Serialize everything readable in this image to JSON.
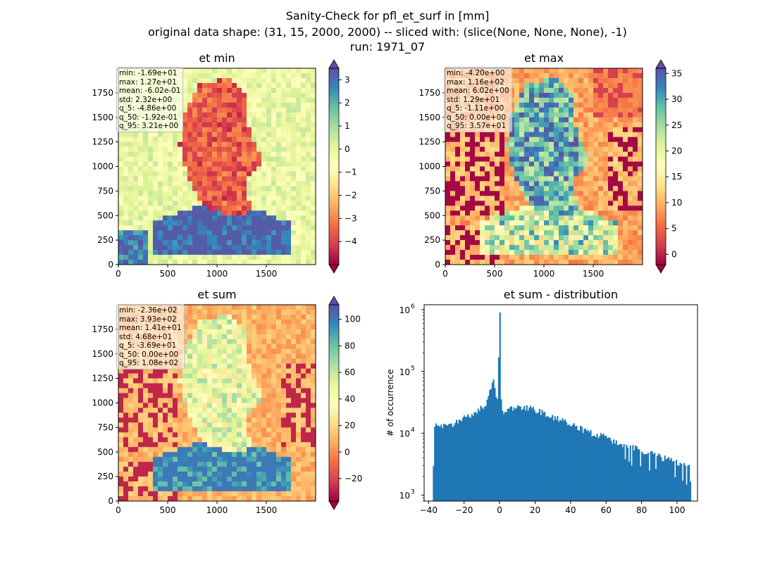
{
  "figure": {
    "title_line1": "Sanity-Check for pfl_et_surf in [mm]",
    "title_line2": "original data shape: (31, 15, 2000, 2000) -- sliced with: (slice(None, None, None), -1)",
    "title_line3": "run: 1971_07"
  },
  "chart_data": [
    {
      "type": "heatmap",
      "title": "et min",
      "xlim": [
        0,
        2000
      ],
      "ylim": [
        0,
        2000
      ],
      "xticks": [
        "0",
        "500",
        "1000",
        "1500"
      ],
      "yticks": [
        "0",
        "250",
        "500",
        "750",
        "1000",
        "1250",
        "1500",
        "1750"
      ],
      "colormap": "Spectral",
      "colorbar": {
        "range": [
          -5,
          3.5
        ],
        "extend": "both",
        "ticks": [
          "3",
          "2",
          "1",
          "0",
          "−1",
          "−2",
          "−3",
          "−4"
        ]
      },
      "stats": [
        "min: -1.69e+01",
        "max: 1.27e+01",
        "mean: -6.02e-01",
        "std: 2.32e+00",
        "q_5: -4.86e+00",
        "q_50: -1.92e-01",
        "q_95: 3.21e+00"
      ]
    },
    {
      "type": "heatmap",
      "title": "et max",
      "xlim": [
        0,
        2000
      ],
      "ylim": [
        0,
        2000
      ],
      "xticks": [
        "0",
        "500",
        "1000",
        "1500"
      ],
      "yticks": [
        "0",
        "250",
        "500",
        "750",
        "1000",
        "1250",
        "1500",
        "1750"
      ],
      "colormap": "Spectral",
      "colorbar": {
        "range": [
          -2,
          36
        ],
        "extend": "both",
        "ticks": [
          "35",
          "30",
          "25",
          "20",
          "15",
          "10",
          "5",
          "0"
        ]
      },
      "stats": [
        "min: -4.20e+00",
        "max: 1.16e+02",
        "mean: 6.02e+00",
        "std: 1.29e+01",
        "q_5: -1.11e+00",
        "q_50: 0.00e+00",
        "q_95: 3.57e+01"
      ]
    },
    {
      "type": "heatmap",
      "title": "et sum",
      "xlim": [
        0,
        2000
      ],
      "ylim": [
        0,
        2000
      ],
      "xticks": [
        "0",
        "500",
        "1000",
        "1500"
      ],
      "yticks": [
        "0",
        "250",
        "500",
        "750",
        "1000",
        "1250",
        "1500",
        "1750"
      ],
      "colormap": "Spectral",
      "colorbar": {
        "range": [
          -37,
          111
        ],
        "extend": "both",
        "ticks": [
          "100",
          "80",
          "60",
          "40",
          "20",
          "0",
          "−20"
        ]
      },
      "stats": [
        "min: -2.36e+02",
        "max: 3.93e+02",
        "mean: 1.41e+01",
        "std: 4.68e+01",
        "q_5: -3.69e+01",
        "q_50: 0.00e+00",
        "q_95: 1.08e+02"
      ]
    },
    {
      "type": "bar",
      "title": "et sum - distribution",
      "ylabel": "# of occurrence",
      "xlabel": "",
      "yscale": "log",
      "xlim": [
        -42.5,
        111.5
      ],
      "ylim": [
        800,
        1200000
      ],
      "xticks": [
        "−40",
        "−20",
        "0",
        "20",
        "40",
        "60",
        "80",
        "100"
      ],
      "yticks": [
        "10",
        "10",
        "10",
        "10"
      ],
      "ytick_exponents": [
        "3",
        "4",
        "5",
        "6"
      ],
      "bin_width": 0.72,
      "bar_color": "#1f77b4",
      "histogram": [
        {
          "x": -37,
          "y": 12000
        },
        {
          "x": -35,
          "y": 13500
        },
        {
          "x": -33,
          "y": 12500
        },
        {
          "x": -30,
          "y": 13000
        },
        {
          "x": -27,
          "y": 13500
        },
        {
          "x": -25,
          "y": 15000
        },
        {
          "x": -22,
          "y": 16500
        },
        {
          "x": -20,
          "y": 17500
        },
        {
          "x": -18,
          "y": 18500
        },
        {
          "x": -15,
          "y": 21000
        },
        {
          "x": -12,
          "y": 24000
        },
        {
          "x": -10,
          "y": 26000
        },
        {
          "x": -8,
          "y": 30000
        },
        {
          "x": -6,
          "y": 40000
        },
        {
          "x": -4,
          "y": 65000
        },
        {
          "x": -3,
          "y": 75000
        },
        {
          "x": -2,
          "y": 38000
        },
        {
          "x": -1,
          "y": 40000
        },
        {
          "x": 0,
          "y": 900000
        },
        {
          "x": 1,
          "y": 30000
        },
        {
          "x": 2,
          "y": 22000
        },
        {
          "x": 5,
          "y": 25000
        },
        {
          "x": 10,
          "y": 27000
        },
        {
          "x": 15,
          "y": 26000
        },
        {
          "x": 20,
          "y": 24000
        },
        {
          "x": 25,
          "y": 21000
        },
        {
          "x": 30,
          "y": 18500
        },
        {
          "x": 35,
          "y": 16000
        },
        {
          "x": 40,
          "y": 14000
        },
        {
          "x": 45,
          "y": 12000
        },
        {
          "x": 50,
          "y": 10500
        },
        {
          "x": 55,
          "y": 9500
        },
        {
          "x": 60,
          "y": 8500
        },
        {
          "x": 65,
          "y": 7500
        },
        {
          "x": 70,
          "y": 6500
        },
        {
          "x": 75,
          "y": 6000
        },
        {
          "x": 80,
          "y": 5200
        },
        {
          "x": 85,
          "y": 4700
        },
        {
          "x": 90,
          "y": 4200
        },
        {
          "x": 95,
          "y": 3800
        },
        {
          "x": 100,
          "y": 3400
        },
        {
          "x": 105,
          "y": 3000
        },
        {
          "x": 107,
          "y": 3000
        }
      ]
    }
  ]
}
